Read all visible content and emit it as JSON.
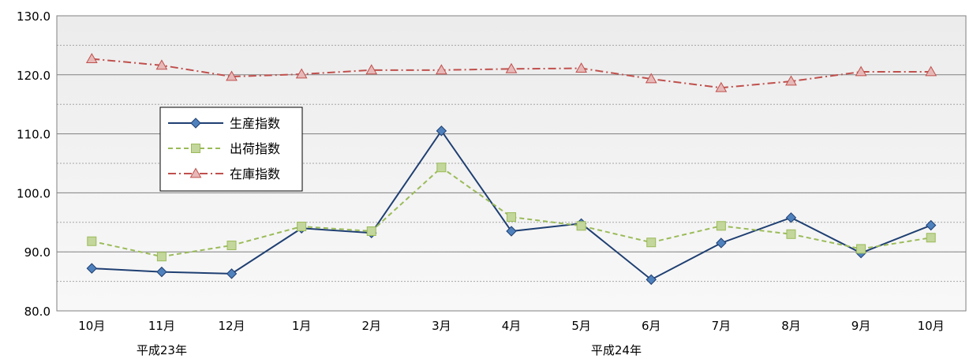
{
  "chart_data": {
    "type": "line",
    "categories": [
      "10月",
      "11月",
      "12月",
      "1月",
      "2月",
      "3月",
      "4月",
      "5月",
      "6月",
      "7月",
      "8月",
      "9月",
      "10月"
    ],
    "era_labels": [
      {
        "text": "平成23年",
        "category_index": 1
      },
      {
        "text": "平成24年",
        "category_index": 7.5
      }
    ],
    "ylim": [
      80,
      130
    ],
    "yticks": [
      "80.0",
      "90.0",
      "100.0",
      "110.0",
      "120.0",
      "130.0"
    ],
    "ytick_values": [
      80,
      90,
      100,
      110,
      120,
      130
    ],
    "minor_grid_values": [
      85,
      95,
      105,
      115,
      125
    ],
    "grid": true,
    "legend_position": "left-middle",
    "series": [
      {
        "name": "生産指数",
        "color": "#1F3F72",
        "marker_fill": "#4F81BD",
        "marker": "diamond",
        "line_style": "solid",
        "values": [
          87.2,
          86.6,
          86.3,
          94.0,
          93.2,
          110.5,
          93.5,
          94.8,
          85.3,
          91.5,
          95.8,
          89.8,
          94.5
        ]
      },
      {
        "name": "出荷指数",
        "color": "#9BBB59",
        "marker_fill": "#C3D69B",
        "marker": "square",
        "line_style": "dashed",
        "values": [
          91.8,
          89.2,
          91.1,
          94.3,
          93.5,
          104.3,
          95.9,
          94.4,
          91.6,
          94.4,
          93.0,
          90.5,
          92.4
        ]
      },
      {
        "name": "在庫指数",
        "color": "#C0504D",
        "marker_fill": "#E6B9B8",
        "marker": "triangle",
        "line_style": "dashdot",
        "values": [
          122.7,
          121.6,
          119.7,
          120.1,
          120.8,
          120.8,
          121.0,
          121.1,
          119.3,
          117.8,
          118.9,
          120.5,
          120.5
        ]
      }
    ]
  }
}
